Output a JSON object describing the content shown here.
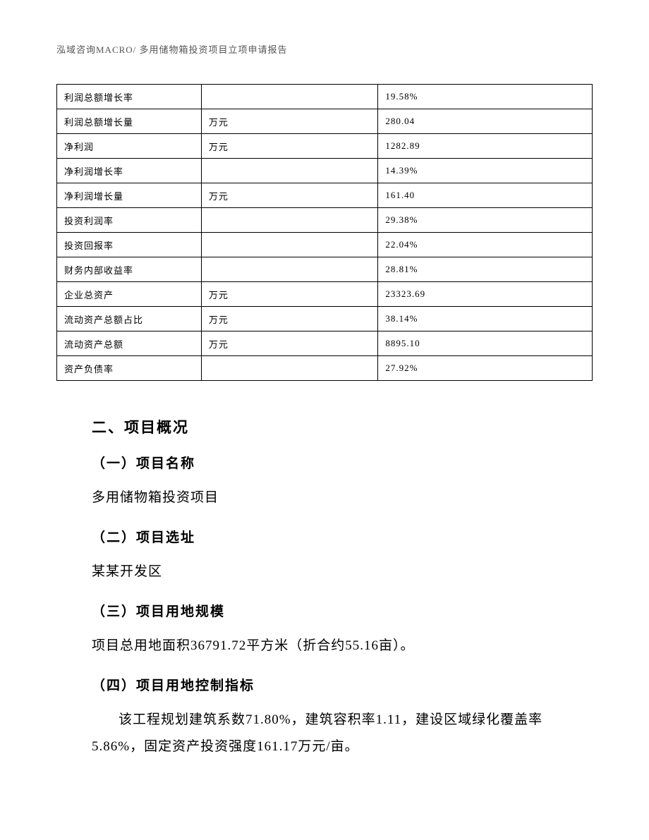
{
  "header": {
    "text": "泓域咨询MACRO/    多用储物箱投资项目立项申请报告"
  },
  "table": {
    "columns": [
      "label",
      "unit",
      "value"
    ],
    "rows": [
      {
        "label": "利润总额增长率",
        "unit": "",
        "value": "19.58%"
      },
      {
        "label": "利润总额增长量",
        "unit": "万元",
        "value": "280.04"
      },
      {
        "label": "净利润",
        "unit": "万元",
        "value": "1282.89"
      },
      {
        "label": "净利润增长率",
        "unit": "",
        "value": "14.39%"
      },
      {
        "label": "净利润增长量",
        "unit": "万元",
        "value": "161.40"
      },
      {
        "label": "投资利润率",
        "unit": "",
        "value": "29.38%"
      },
      {
        "label": "投资回报率",
        "unit": "",
        "value": "22.04%"
      },
      {
        "label": "财务内部收益率",
        "unit": "",
        "value": "28.81%"
      },
      {
        "label": "企业总资产",
        "unit": "万元",
        "value": "23323.69"
      },
      {
        "label": "流动资产总额占比",
        "unit": "万元",
        "value": "38.14%"
      },
      {
        "label": "流动资产总额",
        "unit": "万元",
        "value": "8895.10"
      },
      {
        "label": "资产负债率",
        "unit": "",
        "value": "27.92%"
      }
    ]
  },
  "section": {
    "title": "二、项目概况",
    "items": {
      "name_heading": "（一）项目名称",
      "name_body": "多用储物箱投资项目",
      "site_heading": "（二）项目选址",
      "site_body": "某某开发区",
      "land_heading": "（三）项目用地规模",
      "land_body": "项目总用地面积36791.72平方米（折合约55.16亩）。",
      "ctrl_heading": "（四）项目用地控制指标",
      "ctrl_body": "该工程规划建筑系数71.80%，建筑容积率1.11，建设区域绿化覆盖率5.86%，固定资产投资强度161.17万元/亩。"
    }
  }
}
